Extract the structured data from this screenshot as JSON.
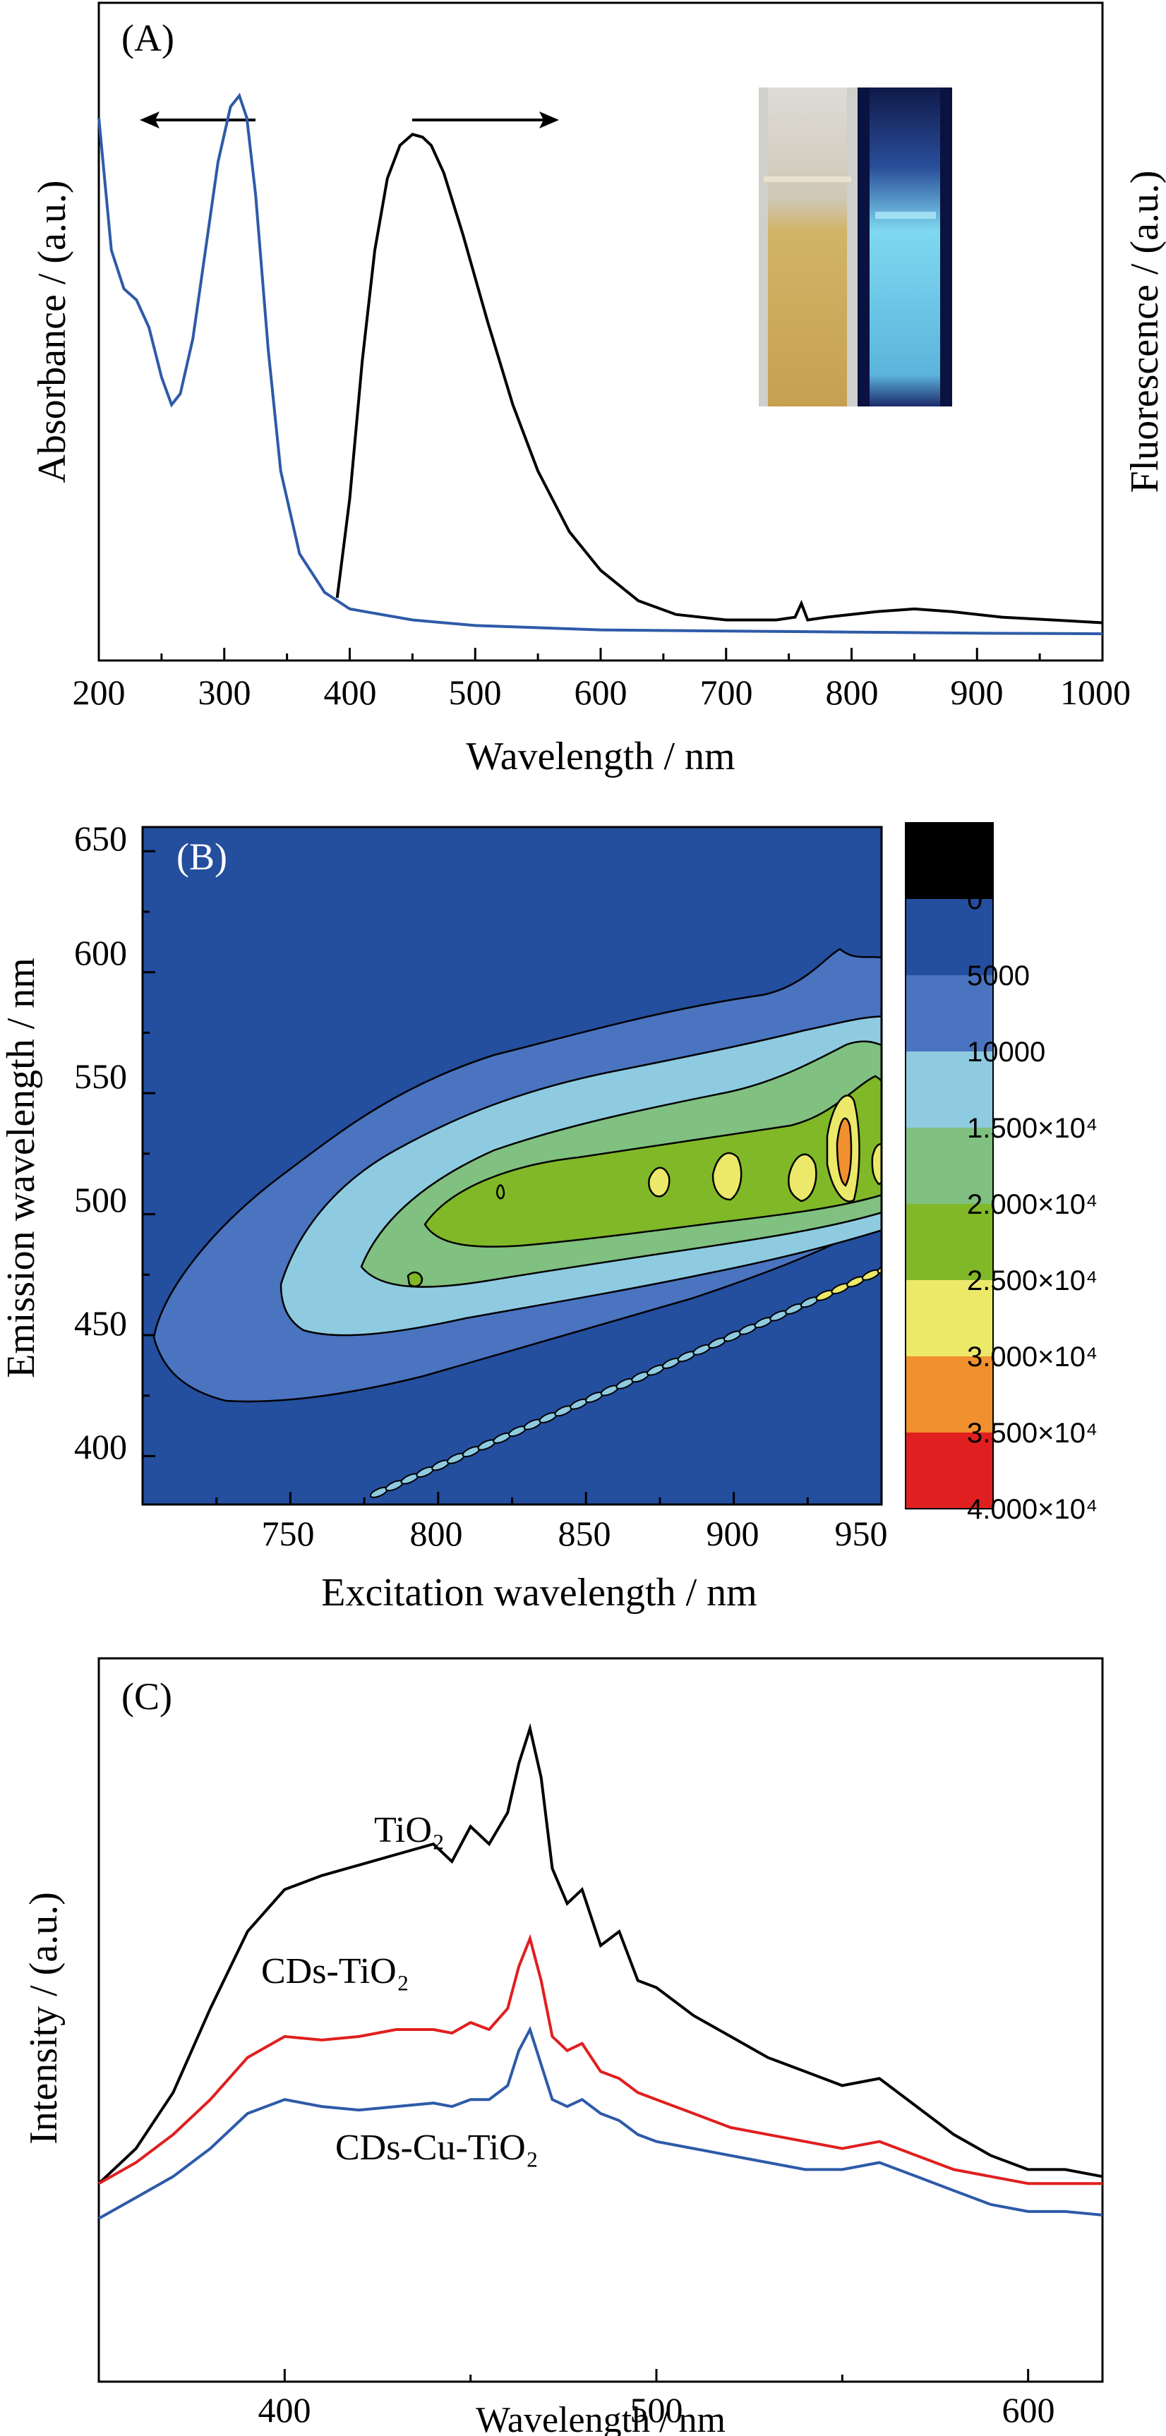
{
  "colors": {
    "blue_curve": "#2e5aa8",
    "black_curve": "#000000",
    "red_curve": "#e01f1f",
    "cb_colors": [
      "#000000",
      "#244e9e",
      "#4a73c0",
      "#8ecbe1",
      "#80c080",
      "#80b828",
      "#ece86a",
      "#f0902e",
      "#e02020"
    ]
  },
  "chart_data": [
    {
      "panel": "(A)",
      "type": "line",
      "xlabel": "Wavelength / nm",
      "ylabel_left": "Absorbance / (a.u.)",
      "ylabel_right": "Fluorescence / (a.u.)",
      "xlim": [
        200,
        1000
      ],
      "ylim": [
        0,
        1
      ],
      "xticks": [
        "200",
        "300",
        "400",
        "500",
        "600",
        "700",
        "800",
        "900",
        "1000"
      ],
      "inset": "photo of vial under daylight and UV light",
      "series": [
        {
          "role": "absorbance",
          "color": "blue_curve",
          "x": [
            200,
            210,
            220,
            230,
            240,
            250,
            258,
            265,
            275,
            285,
            295,
            305,
            312,
            318,
            325,
            335,
            345,
            360,
            380,
            400,
            450,
            500,
            600,
            700,
            800,
            900,
            1000
          ],
          "y": [
            0.94,
            0.7,
            0.63,
            0.61,
            0.56,
            0.47,
            0.42,
            0.44,
            0.54,
            0.7,
            0.86,
            0.96,
            0.98,
            0.94,
            0.8,
            0.52,
            0.3,
            0.15,
            0.08,
            0.05,
            0.03,
            0.02,
            0.012,
            0.01,
            0.008,
            0.006,
            0.005
          ]
        },
        {
          "role": "fluorescence",
          "color": "black_curve",
          "x": [
            390,
            400,
            410,
            420,
            430,
            440,
            450,
            458,
            465,
            475,
            490,
            510,
            530,
            550,
            575,
            600,
            630,
            660,
            700,
            740,
            755,
            760,
            765,
            780,
            820,
            850,
            880,
            920,
            960,
            1000
          ],
          "y": [
            0.07,
            0.25,
            0.5,
            0.7,
            0.83,
            0.89,
            0.91,
            0.905,
            0.89,
            0.84,
            0.73,
            0.57,
            0.42,
            0.3,
            0.19,
            0.12,
            0.065,
            0.04,
            0.03,
            0.03,
            0.035,
            0.06,
            0.03,
            0.035,
            0.045,
            0.05,
            0.045,
            0.035,
            0.03,
            0.025
          ]
        }
      ]
    },
    {
      "panel": "(B)",
      "type": "heatmap",
      "xlabel": "Excitation wavelength / nm",
      "ylabel": "Emission wavelength / nm",
      "xlim": [
        700,
        950
      ],
      "ylim": [
        380,
        660
      ],
      "xticks": [
        "750",
        "800",
        "850",
        "900",
        "950"
      ],
      "yticks": [
        "400",
        "450",
        "500",
        "550",
        "600",
        "650"
      ],
      "colorbar_labels": [
        "0",
        "5000",
        "10000",
        "1.500×10⁴",
        "2.000×10⁴",
        "2.500×10⁴",
        "3.000×10⁴",
        "3.500×10⁴",
        "4.000×10⁴"
      ]
    },
    {
      "panel": "(C)",
      "type": "line",
      "xlabel": "Wavelength / nm",
      "ylabel": "Intensity / (a.u.)",
      "xlim": [
        350,
        620
      ],
      "ylim": [
        0,
        1
      ],
      "xticks": [
        "400",
        "500",
        "600"
      ],
      "x": [
        350,
        360,
        370,
        380,
        390,
        400,
        410,
        420,
        430,
        440,
        445,
        450,
        455,
        460,
        463,
        466,
        469,
        472,
        476,
        480,
        485,
        490,
        495,
        500,
        510,
        520,
        530,
        540,
        550,
        560,
        570,
        580,
        590,
        600,
        610,
        620
      ],
      "series": [
        {
          "name": "TiO₂",
          "color": "black_curve",
          "values": [
            0.28,
            0.33,
            0.41,
            0.53,
            0.64,
            0.7,
            0.72,
            0.735,
            0.75,
            0.765,
            0.74,
            0.79,
            0.765,
            0.81,
            0.88,
            0.93,
            0.86,
            0.73,
            0.68,
            0.7,
            0.62,
            0.64,
            0.57,
            0.56,
            0.52,
            0.49,
            0.46,
            0.44,
            0.42,
            0.43,
            0.39,
            0.35,
            0.32,
            0.3,
            0.3,
            0.29
          ]
        },
        {
          "name": "CDs-TiO₂",
          "color": "red_curve",
          "values": [
            0.28,
            0.31,
            0.35,
            0.4,
            0.46,
            0.49,
            0.485,
            0.49,
            0.5,
            0.5,
            0.495,
            0.51,
            0.5,
            0.53,
            0.59,
            0.63,
            0.57,
            0.49,
            0.47,
            0.48,
            0.44,
            0.43,
            0.41,
            0.4,
            0.38,
            0.36,
            0.35,
            0.34,
            0.33,
            0.34,
            0.32,
            0.3,
            0.29,
            0.28,
            0.28,
            0.28
          ]
        },
        {
          "name": "CDs-Cu-TiO₂",
          "color": "blue_curve",
          "values": [
            0.23,
            0.26,
            0.29,
            0.33,
            0.38,
            0.4,
            0.39,
            0.385,
            0.39,
            0.395,
            0.39,
            0.4,
            0.4,
            0.42,
            0.47,
            0.5,
            0.45,
            0.4,
            0.39,
            0.4,
            0.38,
            0.37,
            0.35,
            0.34,
            0.33,
            0.32,
            0.31,
            0.3,
            0.3,
            0.31,
            0.29,
            0.27,
            0.25,
            0.24,
            0.24,
            0.235
          ]
        }
      ]
    }
  ]
}
